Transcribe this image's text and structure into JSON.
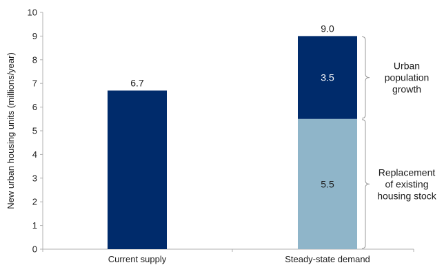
{
  "chart_data": {
    "type": "bar",
    "stacked": true,
    "categories": [
      "Current supply",
      "Steady-state demand"
    ],
    "series": [
      {
        "key": "base",
        "values": [
          6.7,
          5.5
        ],
        "colors": [
          "#002b6b",
          "#8fb5c9"
        ]
      },
      {
        "key": "growth",
        "values": [
          null,
          3.5
        ],
        "colors": [
          null,
          "#002b6b"
        ]
      }
    ],
    "data_labels": [
      {
        "category": 0,
        "series": "base",
        "position": "top",
        "text": "6.7"
      },
      {
        "category": 1,
        "series": "base",
        "position": "center",
        "text": "5.5"
      },
      {
        "category": 1,
        "series": "growth",
        "position": "center",
        "text": "3.5",
        "color": "#ffffff"
      },
      {
        "category": 1,
        "series": "growth",
        "position": "top",
        "text": "9.0"
      }
    ],
    "ylabel": "New urban housing units (millions/year)",
    "xlabel": "",
    "ylim": [
      0,
      10
    ],
    "yticks": [
      0,
      1,
      2,
      3,
      4,
      5,
      6,
      7,
      8,
      9,
      10
    ],
    "grid": false,
    "annotations": [
      {
        "category": 1,
        "y_range": [
          5.5,
          9.0
        ],
        "lines": [
          "Urban",
          "population",
          "growth"
        ]
      },
      {
        "category": 1,
        "y_range": [
          0,
          5.5
        ],
        "lines": [
          "Replacement",
          "of existing",
          "housing stock"
        ]
      }
    ]
  }
}
